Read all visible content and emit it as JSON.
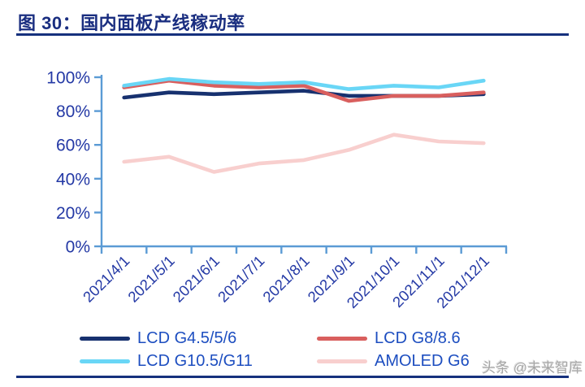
{
  "page": {
    "title": "图 30：国内面板产线稼动率",
    "watermark": "头条 @未来智库",
    "accent_color": "#16317d"
  },
  "chart_data": {
    "type": "line",
    "title": "国内面板产线稼动率",
    "categories": [
      "2021/4/1",
      "2021/5/1",
      "2021/6/1",
      "2021/7/1",
      "2021/8/1",
      "2021/9/1",
      "2021/10/1",
      "2021/11/1",
      "2021/12/1"
    ],
    "y_ticks": [
      "0%",
      "20%",
      "40%",
      "60%",
      "80%",
      "100%"
    ],
    "ylim": [
      0,
      100
    ],
    "grid": false,
    "legend_position": "bottom",
    "axis_color": "#5b9bd5",
    "tick_label_color": "#2439a5",
    "legend_text_color": "#1d4ec0",
    "series": [
      {
        "name": "LCD G4.5/5/6",
        "color": "#17316f",
        "values": [
          88,
          91,
          90,
          91,
          92,
          89,
          89,
          89,
          90
        ]
      },
      {
        "name": "LCD G8/8.6",
        "color": "#d95f5e",
        "values": [
          94,
          98,
          95,
          94,
          95,
          86,
          89,
          89,
          91
        ]
      },
      {
        "name": "LCD G10.5/G11",
        "color": "#69d6f6",
        "values": [
          95,
          99,
          97,
          96,
          97,
          93,
          95,
          94,
          98
        ]
      },
      {
        "name": "AMOLED G6",
        "color": "#f8cfce",
        "values": [
          50,
          53,
          44,
          49,
          51,
          57,
          66,
          62,
          61
        ]
      }
    ]
  }
}
